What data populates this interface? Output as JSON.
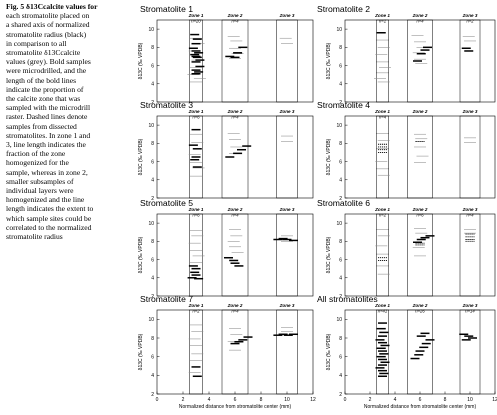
{
  "caption": {
    "lines": [
      "Fig. 5  δ13Ccalcite values for",
      "each stromatolite placed on",
      "a shared axis of normalized",
      "stromatolite radius (black)",
      "in comparison to all",
      "stromatolite δ13Ccalcite",
      "values (grey). Bold samples",
      "were microdrilled, and the",
      "length of the bold lines",
      "indicate the proportion of",
      "the calcite zone that was",
      "sampled with the microdrill",
      "raster. Dashed lines denote",
      "samples from dissected",
      "stromatolites. In zone 1 and",
      "3, line length indicates the",
      "fraction of the zone",
      "homogenized for the",
      "sample, whereas in zone 2,",
      "smaller subsamples of",
      "individual layers were",
      "homogenized and the line",
      "length indicates the extent to",
      "which sample sites could be",
      "correlated to the normalized",
      "stromatolite radius"
    ]
  },
  "axis": {
    "ylabel": "δ13C (‰ VPDB)",
    "xlabel": "Normalized distance from stromatolite center (mm)",
    "xlabel_right": "Normalized distance from stromatolite center (mm)",
    "xticks": [
      "0",
      "2",
      "4",
      "6",
      "8",
      "10",
      "12"
    ],
    "yticks": [
      "2",
      "4",
      "6",
      "8",
      "10"
    ]
  },
  "colors": {
    "black": "#000000",
    "grey": "#8c8c8c"
  },
  "chart_data": [
    {
      "type": "scatter",
      "title": "Stromatolite 1",
      "xlim": [
        0,
        12
      ],
      "ylim": [
        2,
        11
      ],
      "zones": [
        {
          "name": "Zone 1",
          "n": "n=20",
          "x": [
            2.5,
            3.5
          ]
        },
        {
          "name": "Zone 2",
          "n": "n=4",
          "x": [
            5,
            7
          ]
        },
        {
          "name": "Zone 3",
          "n": "",
          "x": [
            9.2,
            10.8
          ]
        }
      ],
      "grey": [
        [
          3.0,
          9.0
        ],
        [
          3.2,
          8.4
        ],
        [
          2.9,
          7.6
        ],
        [
          3.1,
          6.6
        ],
        [
          3.0,
          5.8
        ],
        [
          2.8,
          5.0
        ],
        [
          3.3,
          4.6
        ],
        [
          3.0,
          4.2
        ],
        [
          5.9,
          9.2
        ],
        [
          6.1,
          8.7
        ],
        [
          6.0,
          7.9
        ],
        [
          6.2,
          7.3
        ],
        [
          6.0,
          6.8
        ],
        [
          9.9,
          9.0
        ],
        [
          10.0,
          8.4
        ]
      ],
      "black": [
        [
          2.9,
          9.4,
          1
        ],
        [
          3.1,
          8.9,
          1
        ],
        [
          3.0,
          8.4,
          1
        ],
        [
          2.8,
          7.9,
          1
        ],
        [
          3.0,
          7.6,
          1
        ],
        [
          3.2,
          7.4,
          1
        ],
        [
          2.9,
          7.2,
          1
        ],
        [
          3.0,
          7.0,
          1
        ],
        [
          3.1,
          6.9,
          1
        ],
        [
          3.3,
          6.6,
          1
        ],
        [
          3.0,
          6.4,
          1
        ],
        [
          3.3,
          5.9,
          1
        ],
        [
          3.0,
          5.5,
          1
        ],
        [
          3.2,
          5.3,
          1
        ],
        [
          3.0,
          5.1,
          1
        ],
        [
          5.6,
          7.0,
          1
        ],
        [
          6.0,
          6.9,
          1
        ],
        [
          6.2,
          7.4,
          1
        ],
        [
          6.6,
          8.0,
          1
        ]
      ]
    },
    {
      "type": "scatter",
      "title": "Stromatolite 2",
      "xlim": [
        0,
        12
      ],
      "ylim": [
        2,
        11
      ],
      "zones": [
        {
          "name": "Zone 1",
          "n": "n=1",
          "x": [
            2.5,
            3.5
          ]
        },
        {
          "name": "Zone 2",
          "n": "n=4",
          "x": [
            5,
            7
          ]
        },
        {
          "name": "Zone 3",
          "n": "n=2",
          "x": [
            9.2,
            10.8
          ]
        }
      ],
      "grey": [
        [
          3.0,
          8.8
        ],
        [
          3.1,
          8.0
        ],
        [
          2.9,
          7.2
        ],
        [
          3.0,
          6.4
        ],
        [
          3.2,
          5.8
        ],
        [
          3.0,
          5.2
        ],
        [
          2.8,
          4.6
        ],
        [
          3.1,
          4.2
        ],
        [
          5.8,
          9.3
        ],
        [
          6.0,
          8.6
        ],
        [
          6.2,
          8.0
        ],
        [
          5.9,
          7.4
        ],
        [
          6.0,
          6.7
        ],
        [
          6.1,
          6.2
        ],
        [
          9.9,
          9.2
        ],
        [
          10.0,
          8.7
        ]
      ],
      "black": [
        [
          2.9,
          9.6,
          1
        ],
        [
          5.8,
          6.5,
          1
        ],
        [
          6.1,
          7.3,
          1
        ],
        [
          6.4,
          7.7,
          1
        ],
        [
          6.6,
          8.0,
          1
        ],
        [
          9.7,
          7.9,
          1
        ],
        [
          9.9,
          7.6,
          1
        ]
      ]
    },
    {
      "type": "scatter",
      "title": "Stromatolite 3",
      "xlim": [
        0,
        12
      ],
      "ylim": [
        2,
        11
      ],
      "zones": [
        {
          "name": "Zone 1",
          "n": "n=6",
          "x": [
            2.5,
            3.5
          ]
        },
        {
          "name": "Zone 2",
          "n": "n=4",
          "x": [
            5,
            7
          ]
        },
        {
          "name": "Zone 3",
          "n": "",
          "x": [
            9.2,
            10.8
          ]
        }
      ],
      "grey": [
        [
          3.0,
          9.0
        ],
        [
          3.1,
          8.1
        ],
        [
          2.9,
          6.8
        ],
        [
          3.0,
          5.9
        ],
        [
          3.2,
          5.3
        ],
        [
          3.0,
          4.4
        ],
        [
          5.9,
          9.1
        ],
        [
          6.0,
          8.4
        ],
        [
          6.1,
          7.6
        ],
        [
          6.0,
          6.9
        ],
        [
          10.0,
          8.8
        ],
        [
          10.0,
          8.2
        ]
      ],
      "black": [
        [
          3.0,
          9.5,
          1
        ],
        [
          2.8,
          7.8,
          1
        ],
        [
          3.1,
          7.4,
          1
        ],
        [
          3.0,
          6.5,
          1
        ],
        [
          2.9,
          6.2,
          1
        ],
        [
          3.1,
          5.4,
          1
        ],
        [
          5.6,
          6.5,
          1
        ],
        [
          6.2,
          6.9,
          1
        ],
        [
          6.5,
          7.3,
          1
        ],
        [
          6.9,
          7.7,
          1
        ]
      ]
    },
    {
      "type": "scatter",
      "title": "Stromatolite 4",
      "xlim": [
        0,
        12
      ],
      "ylim": [
        2,
        11
      ],
      "zones": [
        {
          "name": "Zone 1",
          "n": "n=4",
          "x": [
            2.5,
            3.5
          ]
        },
        {
          "name": "Zone 2",
          "n": "",
          "x": [
            5,
            7
          ]
        },
        {
          "name": "Zone 3",
          "n": "",
          "x": [
            9.2,
            10.8
          ]
        }
      ],
      "grey": [
        [
          3.0,
          9.1
        ],
        [
          3.1,
          8.3
        ],
        [
          3.0,
          7.4
        ],
        [
          2.9,
          6.0
        ],
        [
          3.0,
          5.2
        ],
        [
          3.1,
          4.5
        ],
        [
          6.0,
          9.0
        ],
        [
          6.1,
          8.5
        ],
        [
          6.0,
          7.6
        ],
        [
          6.2,
          6.6
        ],
        [
          6.0,
          5.9
        ],
        [
          10.0,
          8.6
        ],
        [
          10.0,
          8.1
        ]
      ],
      "black": [
        [
          3.0,
          7.9,
          0
        ],
        [
          3.0,
          7.6,
          0
        ],
        [
          3.0,
          7.3,
          0
        ],
        [
          3.0,
          7.0,
          0
        ],
        [
          6.0,
          8.2,
          0
        ]
      ]
    },
    {
      "type": "scatter",
      "title": "Stromatolite 5",
      "xlim": [
        0,
        12
      ],
      "ylim": [
        2,
        11
      ],
      "zones": [
        {
          "name": "Zone 1",
          "n": "n=6",
          "x": [
            2.5,
            3.5
          ]
        },
        {
          "name": "Zone 2",
          "n": "n=4",
          "x": [
            5,
            7
          ]
        },
        {
          "name": "Zone 3",
          "n": "",
          "x": [
            9.2,
            10.8
          ]
        }
      ],
      "grey": [
        [
          3.0,
          9.2
        ],
        [
          3.1,
          8.6
        ],
        [
          2.9,
          7.8
        ],
        [
          3.0,
          7.0
        ],
        [
          3.2,
          6.4
        ],
        [
          3.0,
          5.7
        ],
        [
          6.0,
          9.3
        ],
        [
          6.1,
          8.6
        ],
        [
          5.9,
          8.0
        ],
        [
          6.0,
          7.4
        ],
        [
          6.2,
          6.8
        ],
        [
          10.0,
          8.6
        ],
        [
          10.0,
          8.0
        ]
      ],
      "black": [
        [
          2.8,
          5.3,
          1
        ],
        [
          3.0,
          5.0,
          1
        ],
        [
          2.9,
          4.6,
          1
        ],
        [
          3.0,
          4.3,
          1
        ],
        [
          2.7,
          4.0,
          1
        ],
        [
          3.2,
          3.9,
          1
        ],
        [
          5.5,
          6.2,
          1
        ],
        [
          5.9,
          5.9,
          1
        ],
        [
          6.0,
          5.6,
          1
        ],
        [
          6.3,
          5.3,
          1
        ],
        [
          9.3,
          8.2,
          1
        ],
        [
          9.7,
          8.3,
          1
        ],
        [
          10.0,
          8.2,
          1
        ],
        [
          10.5,
          8.1,
          1
        ]
      ]
    },
    {
      "type": "scatter",
      "title": "Stromatolite 6",
      "xlim": [
        0,
        12
      ],
      "ylim": [
        2,
        11
      ],
      "zones": [
        {
          "name": "Zone 1",
          "n": "n=2",
          "x": [
            2.5,
            3.5
          ]
        },
        {
          "name": "Zone 2",
          "n": "n=6",
          "x": [
            5,
            7
          ]
        },
        {
          "name": "Zone 3",
          "n": "n=4",
          "x": [
            9.2,
            10.8
          ]
        }
      ],
      "grey": [
        [
          3.0,
          9.3
        ],
        [
          3.1,
          8.6
        ],
        [
          2.9,
          7.5
        ],
        [
          3.0,
          6.6
        ],
        [
          3.0,
          5.3
        ],
        [
          3.1,
          4.4
        ],
        [
          6.0,
          9.4
        ],
        [
          6.1,
          8.9
        ],
        [
          5.9,
          7.3
        ],
        [
          6.0,
          6.4
        ],
        [
          10.0,
          9.3
        ],
        [
          10.0,
          8.9
        ]
      ],
      "black": [
        [
          3.0,
          6.2,
          0
        ],
        [
          3.0,
          5.9,
          0
        ],
        [
          5.8,
          7.9,
          1
        ],
        [
          6.1,
          8.2,
          1
        ],
        [
          6.4,
          8.4,
          1
        ],
        [
          6.8,
          8.6,
          1
        ],
        [
          6.0,
          7.6,
          0
        ],
        [
          6.0,
          7.8,
          0
        ],
        [
          10.0,
          8.8,
          0
        ],
        [
          10.0,
          8.5,
          0
        ],
        [
          10.0,
          8.2,
          0
        ],
        [
          10.0,
          8.0,
          0
        ]
      ]
    },
    {
      "type": "scatter",
      "title": "Stromatolite 7",
      "xlim": [
        0,
        12
      ],
      "ylim": [
        2,
        11
      ],
      "zones": [
        {
          "name": "Zone 1",
          "n": "n=2",
          "x": [
            2.5,
            3.5
          ]
        },
        {
          "name": "Zone 2",
          "n": "n=4",
          "x": [
            5,
            7
          ]
        },
        {
          "name": "Zone 3",
          "n": "",
          "x": [
            9.2,
            10.8
          ]
        }
      ],
      "grey": [
        [
          3.0,
          9.4
        ],
        [
          3.1,
          8.7
        ],
        [
          2.9,
          7.9
        ],
        [
          3.0,
          7.2
        ],
        [
          3.1,
          6.3
        ],
        [
          3.0,
          5.6
        ],
        [
          2.9,
          4.3
        ],
        [
          6.0,
          9.0
        ],
        [
          6.1,
          8.4
        ],
        [
          5.9,
          7.6
        ],
        [
          6.0,
          6.7
        ],
        [
          10.0,
          9.1
        ],
        [
          10.0,
          8.7
        ]
      ],
      "black": [
        [
          3.0,
          4.9,
          1
        ],
        [
          3.1,
          3.9,
          1
        ],
        [
          6.0,
          7.4,
          1
        ],
        [
          6.3,
          7.6,
          1
        ],
        [
          6.6,
          7.8,
          1
        ],
        [
          7.0,
          8.1,
          1
        ],
        [
          9.3,
          8.3,
          1
        ],
        [
          9.7,
          8.4,
          1
        ],
        [
          10.1,
          8.3,
          1
        ],
        [
          10.5,
          8.4,
          1
        ]
      ]
    },
    {
      "type": "scatter",
      "title": "All stromatolites",
      "xlim": [
        0,
        12
      ],
      "ylim": [
        2,
        11
      ],
      "zones": [
        {
          "name": "Zone 1",
          "n": "n=41",
          "x": [
            2.5,
            3.5
          ]
        },
        {
          "name": "Zone 2",
          "n": "n=26",
          "x": [
            5,
            7
          ]
        },
        {
          "name": "Zone 3",
          "n": "n=14",
          "x": [
            9.2,
            10.8
          ]
        }
      ],
      "grey": [],
      "black": [
        [
          3.0,
          9.6,
          1
        ],
        [
          2.9,
          9.0,
          1
        ],
        [
          3.1,
          8.6,
          1
        ],
        [
          3.0,
          8.2,
          1
        ],
        [
          2.8,
          7.8,
          1
        ],
        [
          3.0,
          7.5,
          1
        ],
        [
          3.2,
          7.2,
          1
        ],
        [
          2.9,
          6.9,
          1
        ],
        [
          3.0,
          6.6,
          1
        ],
        [
          3.1,
          6.3,
          1
        ],
        [
          2.9,
          6.0,
          1
        ],
        [
          3.0,
          5.7,
          1
        ],
        [
          3.2,
          5.4,
          1
        ],
        [
          3.0,
          5.1,
          1
        ],
        [
          2.8,
          4.8,
          1
        ],
        [
          3.0,
          4.5,
          1
        ],
        [
          3.1,
          4.2,
          1
        ],
        [
          3.0,
          3.9,
          1
        ],
        [
          5.6,
          5.8,
          1
        ],
        [
          5.9,
          6.2,
          1
        ],
        [
          6.0,
          6.6,
          1
        ],
        [
          6.3,
          7.0,
          1
        ],
        [
          6.5,
          7.4,
          1
        ],
        [
          6.8,
          7.8,
          1
        ],
        [
          6.1,
          8.2,
          1
        ],
        [
          6.4,
          8.5,
          1
        ],
        [
          9.5,
          8.4,
          1
        ],
        [
          9.9,
          8.2,
          1
        ],
        [
          10.2,
          8.0,
          1
        ],
        [
          9.7,
          7.8,
          1
        ]
      ]
    }
  ]
}
